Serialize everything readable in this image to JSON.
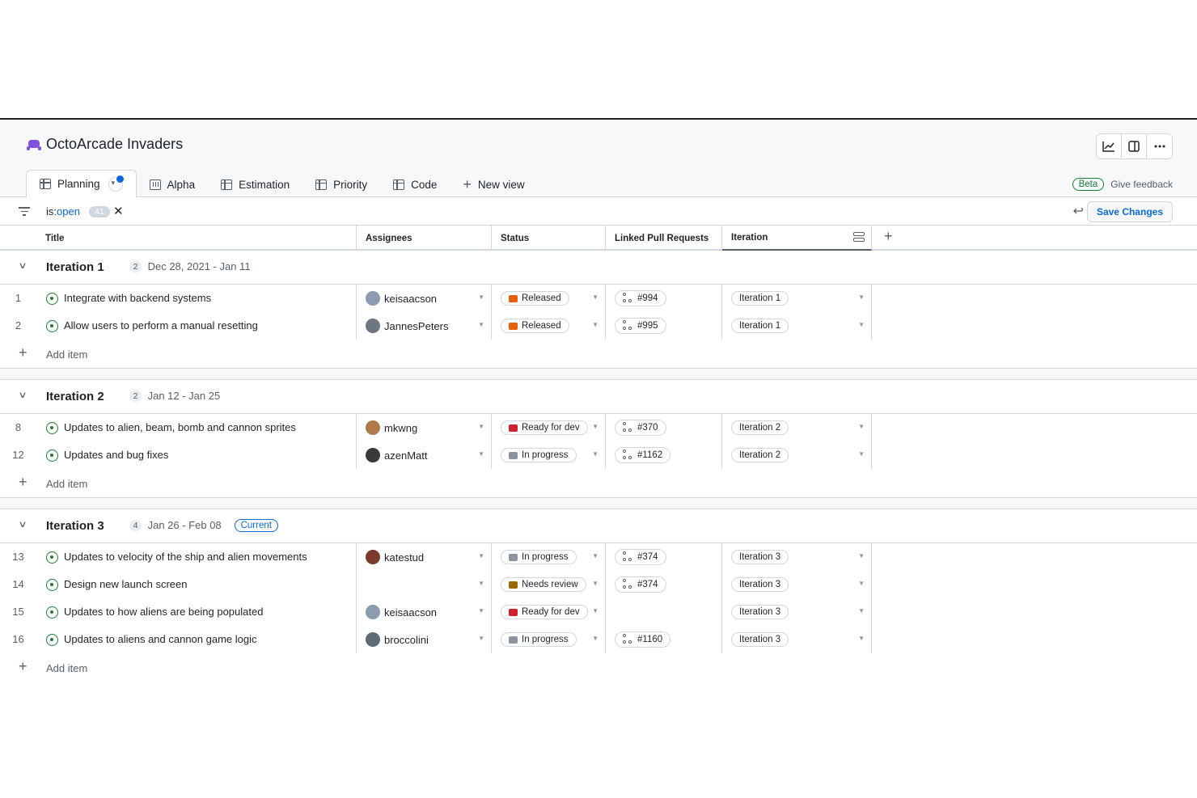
{
  "project": {
    "title": "OctoArcade Invaders",
    "emoji": "space-invader-icon"
  },
  "tabs": [
    {
      "label": "Planning",
      "icon": "table-icon",
      "active": true
    },
    {
      "label": "Alpha",
      "icon": "board-icon"
    },
    {
      "label": "Estimation",
      "icon": "table-icon"
    },
    {
      "label": "Priority",
      "icon": "table-icon"
    },
    {
      "label": "Code",
      "icon": "table-icon"
    }
  ],
  "new_view_label": "New view",
  "beta_label": "Beta",
  "feedback_label": "Give feedback",
  "filter": {
    "key": "is:",
    "value": "open",
    "count": "41"
  },
  "save_label": "Save Changes",
  "columns": {
    "title": "Title",
    "assignees": "Assignees",
    "status": "Status",
    "linked_prs": "Linked Pull Requests",
    "iteration": "Iteration"
  },
  "add_item_label": "Add item",
  "groups": [
    {
      "name": "Iteration 1",
      "count": "2",
      "dates": "Dec 28, 2021 - Jan 11",
      "current": "",
      "items": [
        {
          "num": "1",
          "title": "Integrate with backend systems",
          "assignee": "keisaacson",
          "status": "Released",
          "pr": "#994",
          "iteration": "Iteration 1"
        },
        {
          "num": "2",
          "title": "Allow users to perform a manual resetting",
          "assignee": "JannesPeters",
          "status": "Released",
          "pr": "#995",
          "iteration": "Iteration 1"
        }
      ]
    },
    {
      "name": "Iteration 2",
      "count": "2",
      "dates": "Jan 12 - Jan 25",
      "current": "",
      "items": [
        {
          "num": "8",
          "title": "Updates to alien, beam, bomb and cannon sprites",
          "assignee": "mkwng",
          "status": "Ready for dev",
          "pr": "#370",
          "iteration": "Iteration 2"
        },
        {
          "num": "12",
          "title": "Updates and bug fixes",
          "assignee": "azenMatt",
          "status": "In progress",
          "pr": "#1162",
          "iteration": "Iteration 2"
        }
      ]
    },
    {
      "name": "Iteration 3",
      "count": "4",
      "dates": "Jan 26 - Feb 08",
      "current": "Current",
      "items": [
        {
          "num": "13",
          "title": "Updates to velocity of the ship and alien movements",
          "assignee": "katestud",
          "status": "In progress",
          "pr": "#374",
          "iteration": "Iteration 3"
        },
        {
          "num": "14",
          "title": "Design new launch screen",
          "assignee": "",
          "status": "Needs review",
          "pr": "#374",
          "iteration": "Iteration 3"
        },
        {
          "num": "15",
          "title": "Updates to how aliens are being populated",
          "assignee": "keisaacson",
          "status": "Ready for dev",
          "pr": "",
          "iteration": "Iteration 3"
        },
        {
          "num": "16",
          "title": "Updates to aliens and cannon game logic",
          "assignee": "broccolini",
          "status": "In progress",
          "pr": "#1160",
          "iteration": "Iteration 3"
        }
      ]
    }
  ],
  "colors": {
    "accent": "#0969da",
    "open": "#1a7f37",
    "border": "#d0d7de",
    "muted": "#57606a"
  }
}
